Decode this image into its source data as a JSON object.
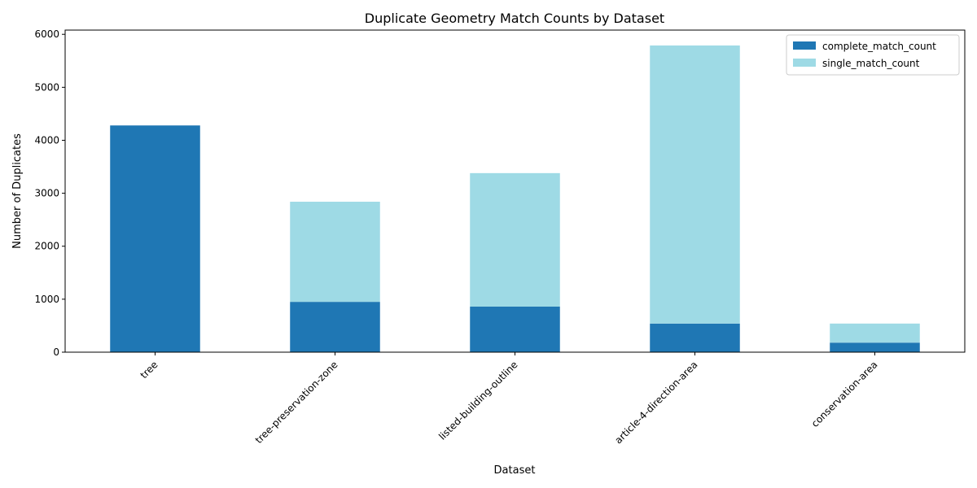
{
  "chart_data": {
    "type": "bar",
    "stacked": true,
    "title": "Duplicate Geometry Match Counts by Dataset",
    "xlabel": "Dataset",
    "ylabel": "Number of Duplicates",
    "categories": [
      "tree",
      "tree-preservation-zone",
      "listed-building-outline",
      "article-4-direction-area",
      "conservation-area"
    ],
    "series": [
      {
        "name": "complete_match_count",
        "color": "#1f77b4",
        "values": [
          4280,
          950,
          860,
          540,
          180
        ]
      },
      {
        "name": "single_match_count",
        "color": "#9edae5",
        "values": [
          0,
          1890,
          2520,
          5250,
          360
        ]
      }
    ],
    "ylim": [
      0,
      6080
    ],
    "yticks": [
      0,
      1000,
      2000,
      3000,
      4000,
      5000,
      6000
    ],
    "grid": false,
    "legend_position": "top-right"
  }
}
